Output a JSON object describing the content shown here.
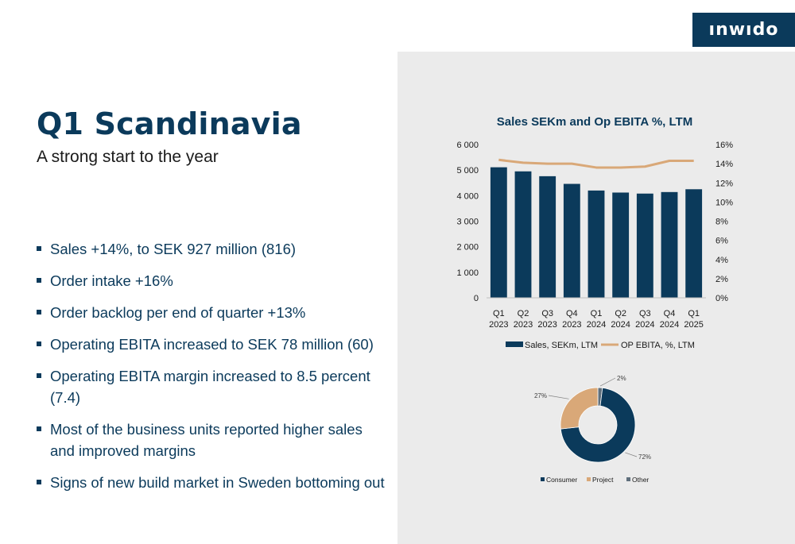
{
  "brand": {
    "logo_text": "ınwıdo"
  },
  "page": {
    "title": "Q1 Scandinavia",
    "subtitle": "A strong start to the year"
  },
  "bullets": [
    "Sales +14%, to SEK 927 million (816)",
    "Order intake +16%",
    "Order backlog per end of quarter +13%",
    "Operating EBITA increased to SEK 78 million (60)",
    "Operating EBITA margin increased to 8.5 percent (7.4)",
    "Most of the business units reported higher sales and improved margins",
    "Signs of new build market in Sweden bottoming out"
  ],
  "colors": {
    "navy": "#0b3a5b",
    "tan": "#d9a878",
    "gray": "#5f6f7c",
    "panel": "#ebebeb"
  },
  "chart_data": [
    {
      "type": "bar",
      "title": "Sales SEKm and Op EBITA %, LTM",
      "categories": [
        [
          "Q1",
          "2023"
        ],
        [
          "Q2",
          "2023"
        ],
        [
          "Q3",
          "2023"
        ],
        [
          "Q4",
          "2023"
        ],
        [
          "Q1",
          "2024"
        ],
        [
          "Q2",
          "2024"
        ],
        [
          "Q3",
          "2024"
        ],
        [
          "Q4",
          "2024"
        ],
        [
          "Q1",
          "2025"
        ]
      ],
      "series": [
        {
          "name": "Sales, SEKm, LTM",
          "kind": "bar",
          "axis": "left",
          "color": "#0b3a5b",
          "values": [
            5110,
            4950,
            4760,
            4460,
            4200,
            4120,
            4080,
            4140,
            4250
          ]
        },
        {
          "name": "OP EBITA, %, LTM",
          "kind": "line",
          "axis": "right",
          "color": "#d9a878",
          "values": [
            14.4,
            14.1,
            14.0,
            14.0,
            13.6,
            13.6,
            13.7,
            14.3,
            14.3
          ]
        }
      ],
      "y_left": {
        "min": 0,
        "max": 6000,
        "ticks": [
          0,
          1000,
          2000,
          3000,
          4000,
          5000,
          6000
        ],
        "tick_labels": [
          "0",
          "1 000",
          "2 000",
          "3 000",
          "4 000",
          "5 000",
          "6 000"
        ]
      },
      "y_right": {
        "min": 0,
        "max": 16,
        "ticks": [
          0,
          2,
          4,
          6,
          8,
          10,
          12,
          14,
          16
        ],
        "tick_labels": [
          "0%",
          "2%",
          "4%",
          "6%",
          "8%",
          "10%",
          "12%",
          "14%",
          "16%"
        ]
      },
      "grid": false,
      "legend": "bottom"
    },
    {
      "type": "pie",
      "donut": true,
      "slices": [
        {
          "label": "Consumer",
          "value": 72,
          "value_label": "72%",
          "color": "#0b3a5b"
        },
        {
          "label": "Project",
          "value": 27,
          "value_label": "27%",
          "color": "#d9a878"
        },
        {
          "label": "Other",
          "value": 2,
          "value_label": "2%",
          "color": "#5f6f7c"
        }
      ],
      "legend": "bottom"
    }
  ]
}
